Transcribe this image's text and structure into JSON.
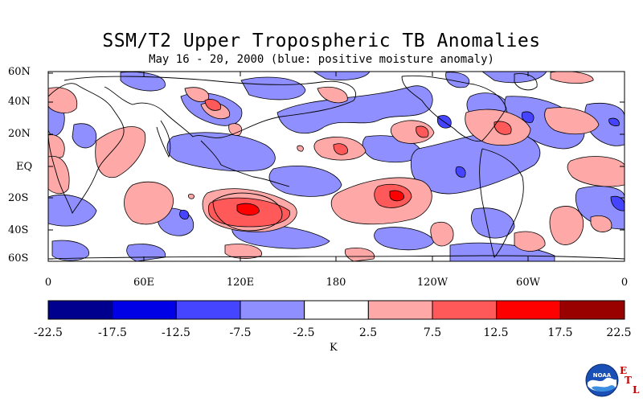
{
  "title": "SSM/T2 Upper Tropospheric TB Anomalies",
  "subtitle": "May 16 - 20, 2000 (blue: positive moisture anomaly)",
  "latitude_labels": [
    "60N",
    "40N",
    "20N",
    "EQ",
    "20S",
    "40S",
    "60S"
  ],
  "latitudes": [
    60,
    40,
    20,
    0,
    -20,
    -40,
    -60
  ],
  "longitude_labels": [
    "0",
    "60E",
    "120E",
    "180",
    "120W",
    "60W",
    "0"
  ],
  "longitudes": [
    0,
    60,
    120,
    180,
    240,
    300,
    360
  ],
  "colorbar": {
    "levels": [
      "-22.5",
      "-17.5",
      "-12.5",
      "-7.5",
      "-2.5",
      "2.5",
      "7.5",
      "12.5",
      "17.5",
      "22.5"
    ],
    "colors": [
      "#00008f",
      "#0000e6",
      "#4545ff",
      "#8f8fff",
      "#ffffff",
      "#ffa8a8",
      "#ff5959",
      "#ff0000",
      "#990000"
    ],
    "units": "K"
  },
  "logo": {
    "icon": "noaa-logo-icon",
    "text": "NOAA",
    "etl_letters": [
      "E",
      "T",
      "L"
    ]
  }
}
